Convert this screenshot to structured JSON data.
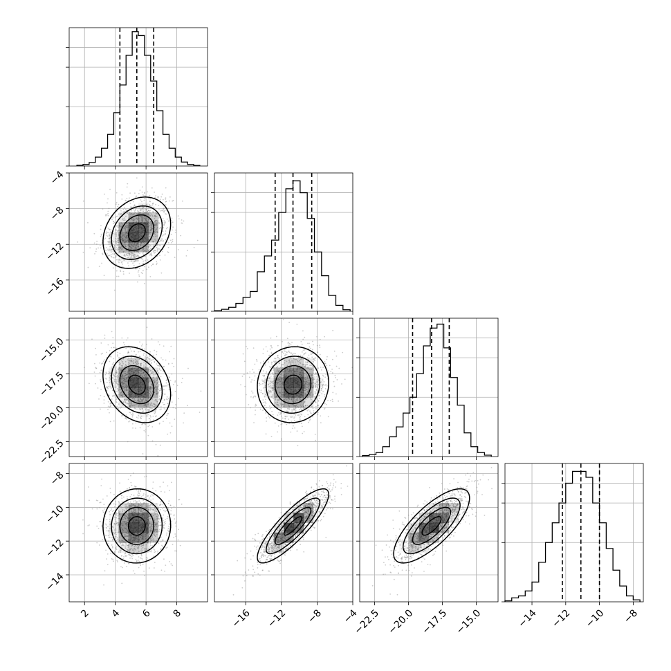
{
  "chart_data": {
    "type": "corner",
    "parameters": 4,
    "grid": true,
    "histogram_quantiles": [
      "16%",
      "50%",
      "84%"
    ],
    "params": [
      {
        "range": [
          1,
          10
        ],
        "ticks": [
          2,
          4,
          6,
          8
        ],
        "tick_labels": [
          "2",
          "4",
          "6",
          "8"
        ],
        "quantiles": [
          4.3,
          5.4,
          6.5
        ],
        "hist_bins": [
          {
            "x0": 1.5,
            "x1": 1.9,
            "y": 0.004
          },
          {
            "x0": 1.9,
            "x1": 2.3,
            "y": 0.008
          },
          {
            "x0": 2.3,
            "x1": 2.7,
            "y": 0.018
          },
          {
            "x0": 2.7,
            "x1": 3.1,
            "y": 0.045
          },
          {
            "x0": 3.1,
            "x1": 3.5,
            "y": 0.09
          },
          {
            "x0": 3.5,
            "x1": 3.9,
            "y": 0.16
          },
          {
            "x0": 3.9,
            "x1": 4.3,
            "y": 0.27
          },
          {
            "x0": 4.3,
            "x1": 4.7,
            "y": 0.41
          },
          {
            "x0": 4.7,
            "x1": 5.1,
            "y": 0.56
          },
          {
            "x0": 5.1,
            "x1": 5.5,
            "y": 0.68
          },
          {
            "x0": 5.5,
            "x1": 5.9,
            "y": 0.66
          },
          {
            "x0": 5.9,
            "x1": 6.3,
            "y": 0.56
          },
          {
            "x0": 6.3,
            "x1": 6.7,
            "y": 0.43
          },
          {
            "x0": 6.7,
            "x1": 7.1,
            "y": 0.28
          },
          {
            "x0": 7.1,
            "x1": 7.5,
            "y": 0.16
          },
          {
            "x0": 7.5,
            "x1": 7.9,
            "y": 0.09
          },
          {
            "x0": 7.9,
            "x1": 8.3,
            "y": 0.045
          },
          {
            "x0": 8.3,
            "x1": 8.7,
            "y": 0.02
          },
          {
            "x0": 8.7,
            "x1": 9.1,
            "y": 0.008
          },
          {
            "x0": 9.1,
            "x1": 9.5,
            "y": 0.003
          }
        ],
        "hist_ymax": 0.7
      },
      {
        "range": [
          -19.5,
          -4
        ],
        "ticks": [
          -16,
          -12,
          -8,
          -4
        ],
        "tick_labels": [
          "−16",
          "−12",
          "−8",
          "−4"
        ],
        "quantiles": [
          -12.7,
          -10.7,
          -8.6
        ],
        "hist_bins": [
          {
            "x0": -19.5,
            "x1": -18.7,
            "y": 0.003
          },
          {
            "x0": -18.7,
            "x1": -17.9,
            "y": 0.01
          },
          {
            "x0": -17.9,
            "x1": -17.1,
            "y": 0.02
          },
          {
            "x0": -17.1,
            "x1": -16.3,
            "y": 0.04
          },
          {
            "x0": -16.3,
            "x1": -15.5,
            "y": 0.07
          },
          {
            "x0": -15.5,
            "x1": -14.7,
            "y": 0.1
          },
          {
            "x0": -14.7,
            "x1": -13.9,
            "y": 0.2
          },
          {
            "x0": -13.9,
            "x1": -13.1,
            "y": 0.28
          },
          {
            "x0": -13.1,
            "x1": -12.3,
            "y": 0.36
          },
          {
            "x0": -12.3,
            "x1": -11.5,
            "y": 0.5
          },
          {
            "x0": -11.5,
            "x1": -10.7,
            "y": 0.62
          },
          {
            "x0": -10.7,
            "x1": -9.9,
            "y": 0.66
          },
          {
            "x0": -9.9,
            "x1": -9.1,
            "y": 0.6
          },
          {
            "x0": -9.1,
            "x1": -8.3,
            "y": 0.47
          },
          {
            "x0": -8.3,
            "x1": -7.5,
            "y": 0.3
          },
          {
            "x0": -7.5,
            "x1": -6.7,
            "y": 0.18
          },
          {
            "x0": -6.7,
            "x1": -5.9,
            "y": 0.08
          },
          {
            "x0": -5.9,
            "x1": -5.1,
            "y": 0.03
          },
          {
            "x0": -5.1,
            "x1": -4.3,
            "y": 0.008
          }
        ],
        "hist_ymax": 0.7
      },
      {
        "range": [
          -23.6,
          -13.4
        ],
        "ticks": [
          -22.5,
          -20.0,
          -17.5,
          -15.0
        ],
        "tick_labels": [
          "−22.5",
          "−20.0",
          "−17.5",
          "−15.0"
        ],
        "quantiles": [
          -19.7,
          -18.3,
          -17.0
        ],
        "hist_bins": [
          {
            "x0": -23.4,
            "x1": -22.9,
            "y": 0.005
          },
          {
            "x0": -22.9,
            "x1": -22.4,
            "y": 0.01
          },
          {
            "x0": -22.4,
            "x1": -21.9,
            "y": 0.02
          },
          {
            "x0": -21.9,
            "x1": -21.4,
            "y": 0.05
          },
          {
            "x0": -21.4,
            "x1": -20.9,
            "y": 0.1
          },
          {
            "x0": -20.9,
            "x1": -20.4,
            "y": 0.15
          },
          {
            "x0": -20.4,
            "x1": -19.9,
            "y": 0.22
          },
          {
            "x0": -19.9,
            "x1": -19.4,
            "y": 0.3
          },
          {
            "x0": -19.4,
            "x1": -18.9,
            "y": 0.42
          },
          {
            "x0": -18.9,
            "x1": -18.4,
            "y": 0.56
          },
          {
            "x0": -18.4,
            "x1": -17.9,
            "y": 0.65
          },
          {
            "x0": -17.9,
            "x1": -17.4,
            "y": 0.67
          },
          {
            "x0": -17.4,
            "x1": -16.9,
            "y": 0.55
          },
          {
            "x0": -16.9,
            "x1": -16.4,
            "y": 0.4
          },
          {
            "x0": -16.4,
            "x1": -15.9,
            "y": 0.26
          },
          {
            "x0": -15.9,
            "x1": -15.4,
            "y": 0.12
          },
          {
            "x0": -15.4,
            "x1": -14.9,
            "y": 0.05
          },
          {
            "x0": -14.9,
            "x1": -14.4,
            "y": 0.02
          },
          {
            "x0": -14.4,
            "x1": -13.9,
            "y": 0.007
          }
        ],
        "hist_ymax": 0.7
      },
      {
        "range": [
          -15.6,
          -7.4
        ],
        "ticks": [
          -14,
          -12,
          -10,
          -8
        ],
        "tick_labels": [
          "−14",
          "−12",
          "−10",
          "−8"
        ],
        "quantiles": [
          -12.2,
          -11.1,
          -10.0
        ],
        "hist_bins": [
          {
            "x0": -15.6,
            "x1": -15.2,
            "y": 0.005
          },
          {
            "x0": -15.2,
            "x1": -14.8,
            "y": 0.02
          },
          {
            "x0": -14.8,
            "x1": -14.4,
            "y": 0.03
          },
          {
            "x0": -14.4,
            "x1": -14.0,
            "y": 0.055
          },
          {
            "x0": -14.0,
            "x1": -13.6,
            "y": 0.1
          },
          {
            "x0": -13.6,
            "x1": -13.2,
            "y": 0.2
          },
          {
            "x0": -13.2,
            "x1": -12.8,
            "y": 0.3
          },
          {
            "x0": -12.8,
            "x1": -12.4,
            "y": 0.4
          },
          {
            "x0": -12.4,
            "x1": -12.0,
            "y": 0.5
          },
          {
            "x0": -12.0,
            "x1": -11.6,
            "y": 0.6
          },
          {
            "x0": -11.6,
            "x1": -11.2,
            "y": 0.66
          },
          {
            "x0": -11.2,
            "x1": -10.8,
            "y": 0.66
          },
          {
            "x0": -10.8,
            "x1": -10.4,
            "y": 0.63
          },
          {
            "x0": -10.4,
            "x1": -10.0,
            "y": 0.5
          },
          {
            "x0": -10.0,
            "x1": -9.6,
            "y": 0.4
          },
          {
            "x0": -9.6,
            "x1": -9.2,
            "y": 0.27
          },
          {
            "x0": -9.2,
            "x1": -8.8,
            "y": 0.16
          },
          {
            "x0": -8.8,
            "x1": -8.4,
            "y": 0.08
          },
          {
            "x0": -8.4,
            "x1": -8.0,
            "y": 0.03
          },
          {
            "x0": -8.0,
            "x1": -7.6,
            "y": 0.01
          }
        ],
        "hist_ymax": 0.7
      }
    ],
    "joint_panels": [
      {
        "x_param": 0,
        "y_param": 1,
        "mean": [
          5.4,
          -10.7
        ],
        "sd": [
          1.1,
          2.0
        ],
        "rho": 0.25
      },
      {
        "x_param": 0,
        "y_param": 2,
        "mean": [
          5.4,
          -18.3
        ],
        "sd": [
          1.1,
          1.4
        ],
        "rho": -0.25
      },
      {
        "x_param": 1,
        "y_param": 2,
        "mean": [
          -10.7,
          -18.3
        ],
        "sd": [
          2.0,
          1.4
        ],
        "rho": 0.05
      },
      {
        "x_param": 0,
        "y_param": 3,
        "mean": [
          5.4,
          -11.1
        ],
        "sd": [
          1.1,
          1.1
        ],
        "rho": 0.02
      },
      {
        "x_param": 1,
        "y_param": 3,
        "mean": [
          -10.7,
          -11.1
        ],
        "sd": [
          2.0,
          1.1
        ],
        "rho": 0.85
      },
      {
        "x_param": 2,
        "y_param": 3,
        "mean": [
          -18.3,
          -11.1
        ],
        "sd": [
          1.4,
          1.1
        ],
        "rho": 0.75
      }
    ],
    "contour_levels_sigma": [
      0.5,
      1.0,
      1.5,
      2.0
    ],
    "colors": {
      "line": "#000000",
      "grid": "#b0b0b0",
      "points": "#8c8c8c",
      "density": "#000000"
    }
  }
}
